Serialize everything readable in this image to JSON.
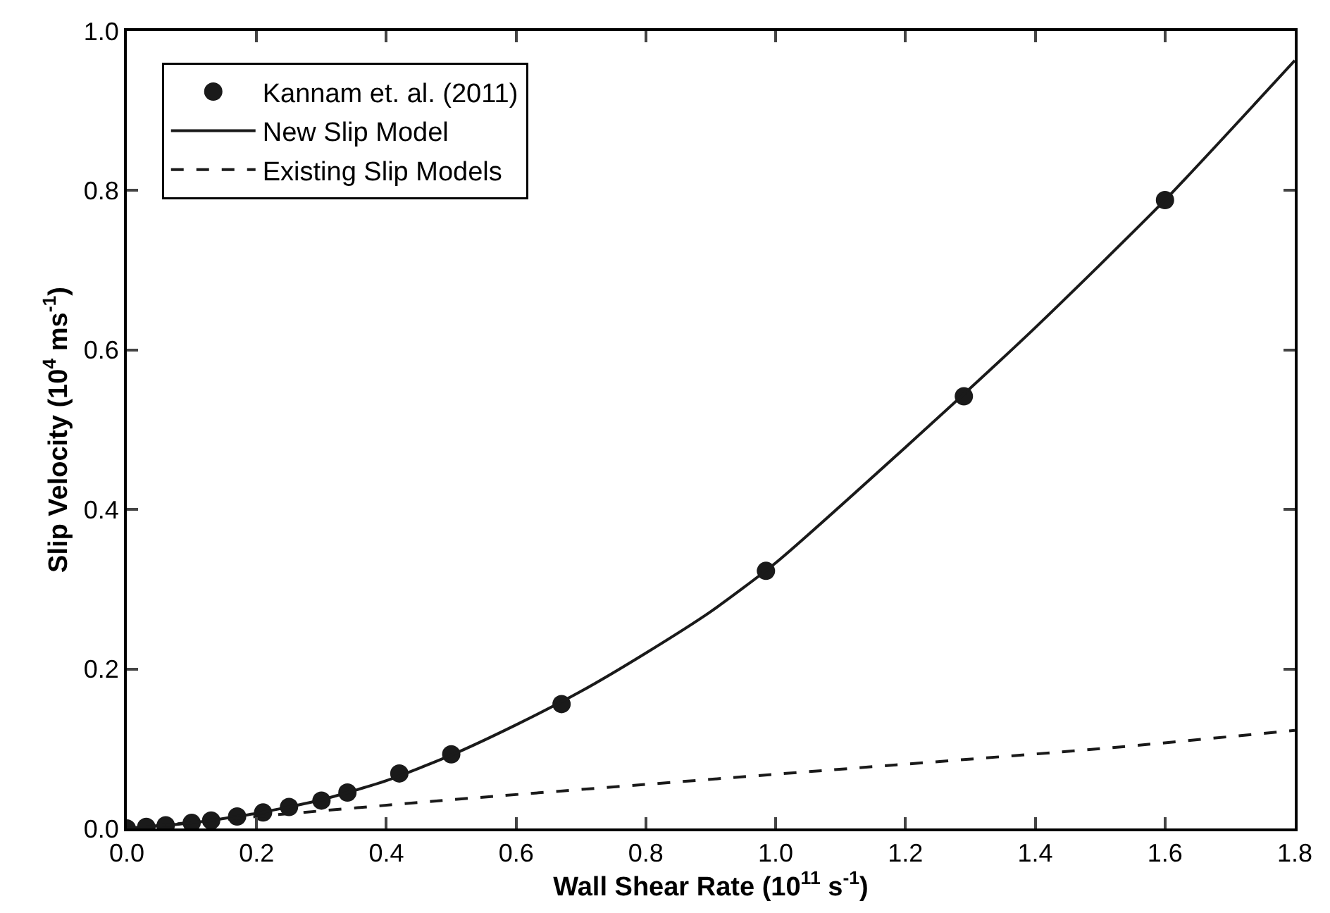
{
  "chart_data": {
    "type": "line",
    "xlabel": "Wall Shear Rate (10$^{11}$ s$^{-1}$)",
    "ylabel": "Slip Velocity (10$^{4}$ ms$^{-1}$)",
    "xlim": [
      0,
      1.8
    ],
    "ylim": [
      0,
      1.0
    ],
    "xticks": [
      {
        "value": 0,
        "label": "0.0"
      },
      {
        "value": 0.2,
        "label": "0.2"
      },
      {
        "value": 0.4,
        "label": "0.4"
      },
      {
        "value": 0.6,
        "label": "0.6"
      },
      {
        "value": 0.8,
        "label": "0.8"
      },
      {
        "value": 1.0,
        "label": "1.0"
      },
      {
        "value": 1.2,
        "label": "1.2"
      },
      {
        "value": 1.4,
        "label": "1.4"
      },
      {
        "value": 1.6,
        "label": "1.6"
      },
      {
        "value": 1.8,
        "label": "1.8"
      }
    ],
    "yticks": [
      {
        "value": 0,
        "label": "0.0"
      },
      {
        "value": 0.2,
        "label": "0.2"
      },
      {
        "value": 0.4,
        "label": "0.4"
      },
      {
        "value": 0.6,
        "label": "0.6"
      },
      {
        "value": 0.8,
        "label": "0.8"
      },
      {
        "value": 1.0,
        "label": "1.0"
      }
    ],
    "legend": "top left",
    "series": [
      {
        "name": "Kannam et. al. (2011)",
        "type": "scatter",
        "marker": "circle",
        "color": "#1a1a1a",
        "x": [
          0.0,
          0.03,
          0.06,
          0.1,
          0.13,
          0.17,
          0.21,
          0.25,
          0.3,
          0.34,
          0.42,
          0.5,
          0.67,
          0.985,
          1.29,
          1.6
        ],
        "values": [
          0.0,
          0.002,
          0.004,
          0.007,
          0.01,
          0.015,
          0.02,
          0.027,
          0.035,
          0.045,
          0.069,
          0.093,
          0.156,
          0.323,
          0.542,
          0.788
        ]
      },
      {
        "name": "New Slip Model",
        "type": "line",
        "line_style": "solid",
        "color": "#1a1a1a",
        "x": [
          0,
          0.1,
          0.2,
          0.3,
          0.4,
          0.5,
          0.6,
          0.7,
          0.8,
          0.9,
          1.0,
          1.2,
          1.4,
          1.6,
          1.8
        ],
        "values": [
          0,
          0.007,
          0.019,
          0.036,
          0.06,
          0.092,
          0.13,
          0.172,
          0.22,
          0.272,
          0.333,
          0.478,
          0.628,
          0.788,
          0.963
        ]
      },
      {
        "name": "Existing Slip Models",
        "type": "line",
        "line_style": "dashed",
        "color": "#1a1a1a",
        "x": [
          0,
          0.2,
          0.5,
          1.0,
          1.5,
          1.8
        ],
        "values": [
          0,
          0.015,
          0.036,
          0.068,
          0.1,
          0.123
        ]
      }
    ]
  }
}
